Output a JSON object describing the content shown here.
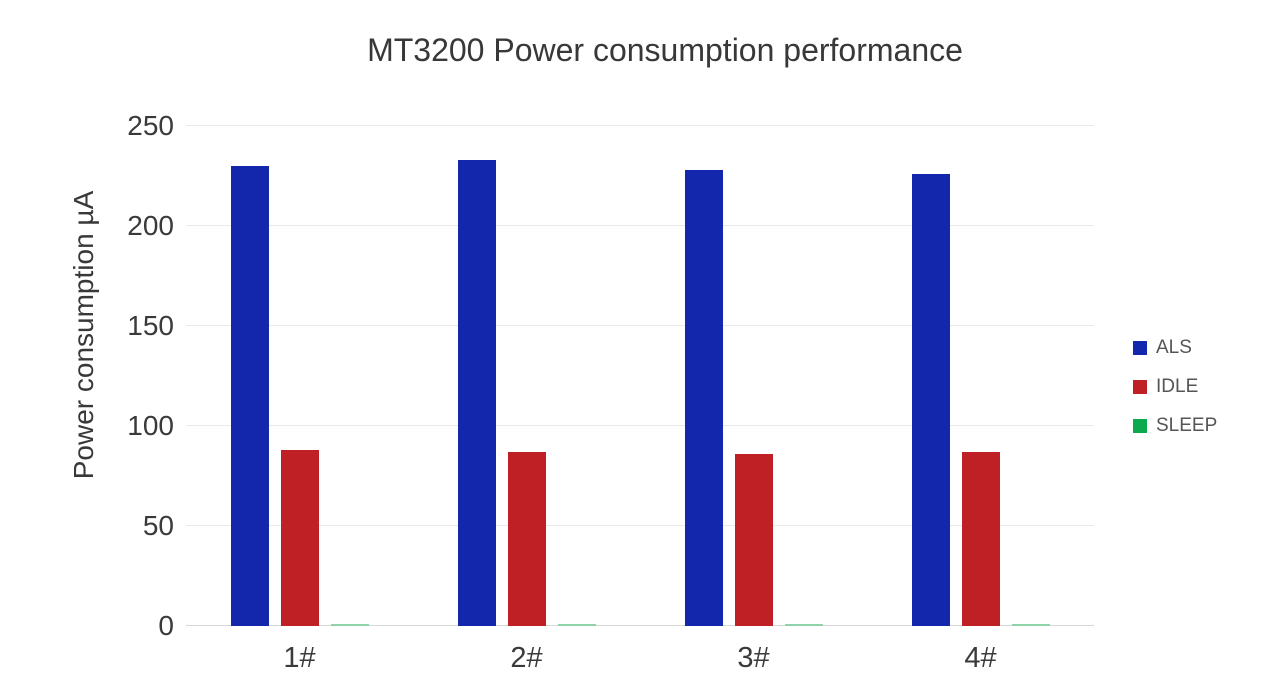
{
  "chart_data": {
    "type": "bar",
    "title": "MT3200 Power consumption performance",
    "xlabel": "",
    "ylabel": "Power consumption µA",
    "categories": [
      "1#",
      "2#",
      "3#",
      "4#"
    ],
    "series": [
      {
        "name": "ALS",
        "color": "#1227ab",
        "values": [
          230,
          233,
          228,
          226
        ]
      },
      {
        "name": "IDLE",
        "color": "#be2026",
        "values": [
          88,
          87,
          86,
          87
        ]
      },
      {
        "name": "SLEEP",
        "color": "#0ca94f",
        "bar_fill": "#8fd4a8",
        "values": [
          1,
          1,
          1,
          1
        ]
      }
    ],
    "ylim": [
      0,
      250
    ],
    "yticks": [
      0,
      50,
      100,
      150,
      200,
      250
    ],
    "grid": true,
    "legend_position": "right",
    "background_color": "#ffffff",
    "grid_color": "#e9e9e9",
    "baseline_color": "#d8d8d8",
    "text_color": "#3a3a3a",
    "legend_text_color": "#555555"
  }
}
